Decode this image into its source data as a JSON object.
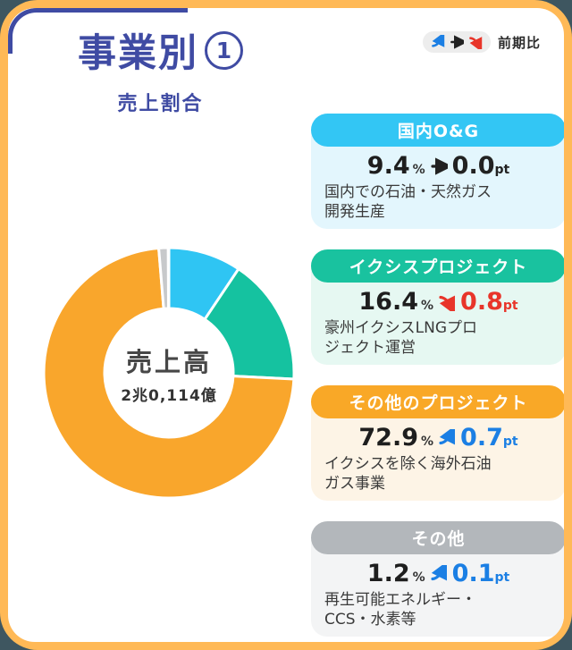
{
  "header": {
    "title": "事業別",
    "title_number": "1",
    "subtitle": "売上割合"
  },
  "legend": {
    "label": "前期比"
  },
  "colors": {
    "trend_up": "#1B7FE4",
    "trend_down": "#E8352A",
    "trend_flat": "#222222",
    "frame_orange": "#FFB956",
    "title_navy": "#3F4BA3"
  },
  "donut": {
    "center_label": "売上高",
    "center_value": "2兆0,114億"
  },
  "chart_data": {
    "type": "pie",
    "title": "売上割合",
    "donut": true,
    "center_label": "売上高",
    "center_value": "2兆0,114億",
    "categories": [
      "国内O&G",
      "イクシスプロジェクト",
      "その他のプロジェクト",
      "その他"
    ],
    "values": [
      9.4,
      16.4,
      72.9,
      1.2
    ],
    "unit": "%",
    "colors": [
      "#2FC5F3",
      "#15C2A0",
      "#F9A62C",
      "#C7C9CB"
    ],
    "start_angle_deg": 0,
    "direction": "clockwise",
    "legend_position": "right-cards"
  },
  "cards": [
    {
      "name": "国内O&G",
      "header_color": "#33C6F4",
      "body_color": "#E3F6FD",
      "value": "9.4",
      "unit": "%",
      "trend": "flat",
      "delta": "0.0",
      "delta_unit": "pt",
      "desc": "国内での石油・天然ガス\n開発生産"
    },
    {
      "name": "イクシスプロジェクト",
      "header_color": "#19C29F",
      "body_color": "#E6F8F2",
      "value": "16.4",
      "unit": "%",
      "trend": "down",
      "delta": "0.8",
      "delta_unit": "pt",
      "desc": "豪州イクシスLNGプロ\nジェクト運営"
    },
    {
      "name": "その他のプロジェクト",
      "header_color": "#F9A827",
      "body_color": "#FDF4E6",
      "value": "72.9",
      "unit": "%",
      "trend": "up",
      "delta": "0.7",
      "delta_unit": "pt",
      "desc": "イクシスを除く海外石油\nガス事業"
    },
    {
      "name": "その他",
      "header_color": "#B3B7BB",
      "body_color": "#F3F4F5",
      "value": "1.2",
      "unit": "%",
      "trend": "up",
      "delta": "0.1",
      "delta_unit": "pt",
      "desc": "再生可能エネルギー・\nCCS・水素等"
    }
  ]
}
